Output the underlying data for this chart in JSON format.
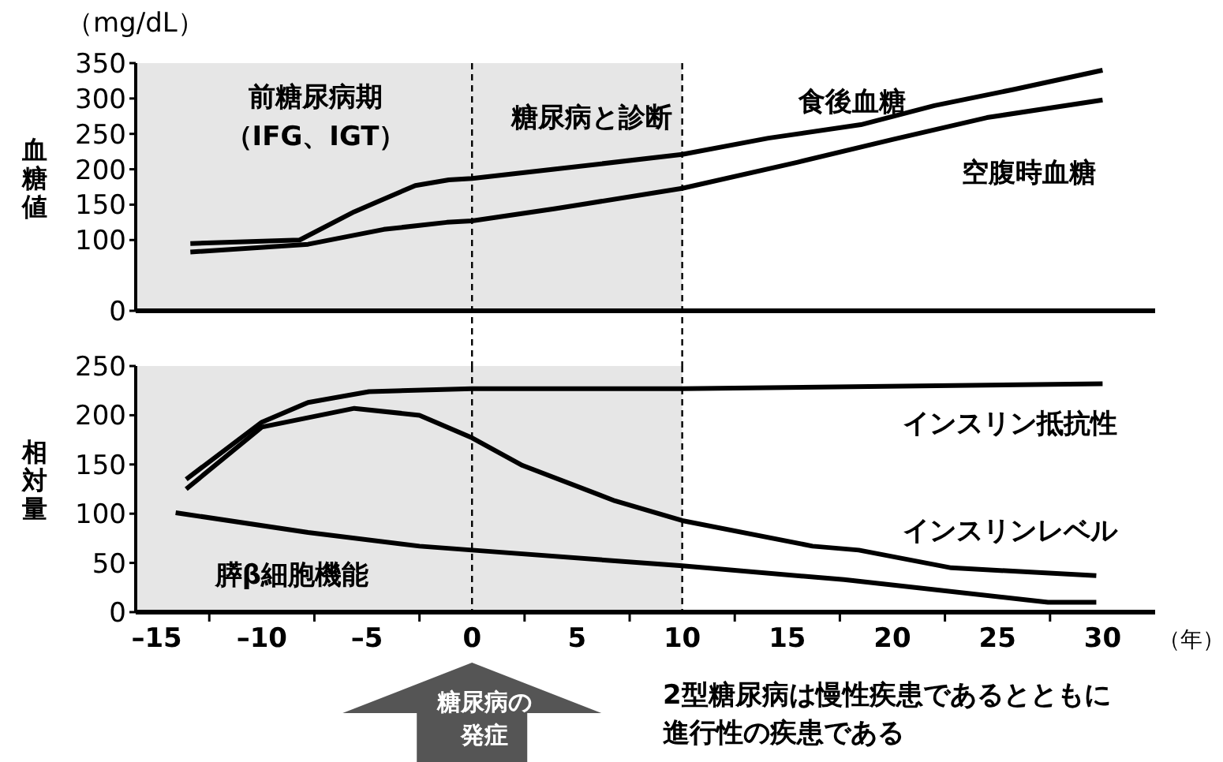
{
  "chart_data": [
    {
      "type": "line",
      "ylabel": "血糖値",
      "annotations": [
        "（mg/dL）",
        "前糖尿病期",
        "（IFG、IGT）",
        "糖尿病と診断"
      ],
      "xlim": [
        -16,
        32.5
      ],
      "ylim": [
        0,
        350
      ],
      "yticks": [
        0,
        100,
        150,
        200,
        250,
        300,
        350
      ],
      "tick_labels": "y",
      "grid": false,
      "marker": "none",
      "line_style": "solid",
      "bands": [
        {
          "axis": "x",
          "from": -16,
          "to": 10,
          "color": "#e6e6e6"
        }
      ],
      "ref_lines": [
        {
          "axis": "x",
          "value": 0,
          "line_style": "dashed",
          "color": "#000000"
        },
        {
          "axis": "x",
          "value": 10,
          "line_style": "dashed",
          "color": "#000000"
        }
      ],
      "series": [
        {
          "name": "食後血糖",
          "color": "#000000",
          "x": [
            -13.4,
            -8.2,
            -5.6,
            -2.7,
            -1.1,
            0,
            3.9,
            10,
            14.1,
            18.5,
            22,
            25.8,
            30
          ],
          "values": [
            95,
            100,
            140,
            177,
            185,
            187,
            200,
            221,
            244,
            263,
            290,
            313,
            340
          ]
        },
        {
          "name": "空腹時血糖",
          "color": "#000000",
          "x": [
            -13.4,
            -7.8,
            -4.2,
            -1.2,
            0,
            3.9,
            10,
            15.5,
            20,
            24.5,
            30
          ],
          "values": [
            83,
            94,
            115,
            125,
            127,
            144,
            173,
            210,
            242,
            273,
            298
          ]
        }
      ]
    },
    {
      "type": "line",
      "ylabel": "相対量",
      "xlabel": "（年）",
      "annotations": [
        "糖尿病の",
        "発症",
        "2型糖尿病は慢性疾患であるとともに",
        "進行性の疾患である"
      ],
      "xlim": [
        -16,
        32.5
      ],
      "ylim": [
        0,
        250
      ],
      "yticks": [
        0,
        50,
        100,
        150,
        200,
        250
      ],
      "xticks": [
        {
          "value": -15,
          "label": "–15"
        },
        {
          "value": -12.5,
          "label": null
        },
        {
          "value": -10,
          "label": "–10"
        },
        {
          "value": -7.5,
          "label": null
        },
        {
          "value": -5,
          "label": "–5"
        },
        {
          "value": -2.5,
          "label": null
        },
        0,
        {
          "value": 2.5,
          "label": null
        },
        5,
        {
          "value": 7.5,
          "label": null
        },
        10,
        {
          "value": 12.5,
          "label": null
        },
        15,
        {
          "value": 17.5,
          "label": null
        },
        20,
        {
          "value": 22.5,
          "label": null
        },
        25,
        {
          "value": 27.5,
          "label": null
        },
        30
      ],
      "grid": false,
      "marker": "none",
      "line_style": "solid",
      "bands": [
        {
          "axis": "x",
          "from": -16,
          "to": 10,
          "color": "#e6e6e6"
        }
      ],
      "ref_lines": [
        {
          "axis": "x",
          "value": 0,
          "line_style": "dashed",
          "color": "#000000"
        },
        {
          "axis": "x",
          "value": 10,
          "line_style": "dashed",
          "color": "#000000"
        }
      ],
      "series": [
        {
          "name": "インスリン抵抗性",
          "color": "#000000",
          "x": [
            -13.6,
            -10,
            -7.8,
            -4.9,
            0,
            10,
            30
          ],
          "values": [
            135,
            193,
            213,
            224,
            227,
            227,
            232
          ]
        },
        {
          "name": "インスリンレベル",
          "color": "#000000",
          "x": [
            -13.6,
            -10,
            -5.6,
            -2.5,
            0,
            2.4,
            6.8,
            10,
            16.2,
            18.4,
            22.8,
            29.7
          ],
          "values": [
            125,
            188,
            207,
            200,
            177,
            149,
            113,
            93,
            67,
            63,
            45,
            37
          ]
        },
        {
          "name": "膵β細胞機能",
          "color": "#000000",
          "x": [
            -14.1,
            -7.8,
            -2.5,
            0,
            10,
            17.7,
            27.4,
            29.7
          ],
          "values": [
            101,
            81,
            67,
            63,
            47,
            33,
            10,
            10
          ]
        }
      ]
    }
  ]
}
